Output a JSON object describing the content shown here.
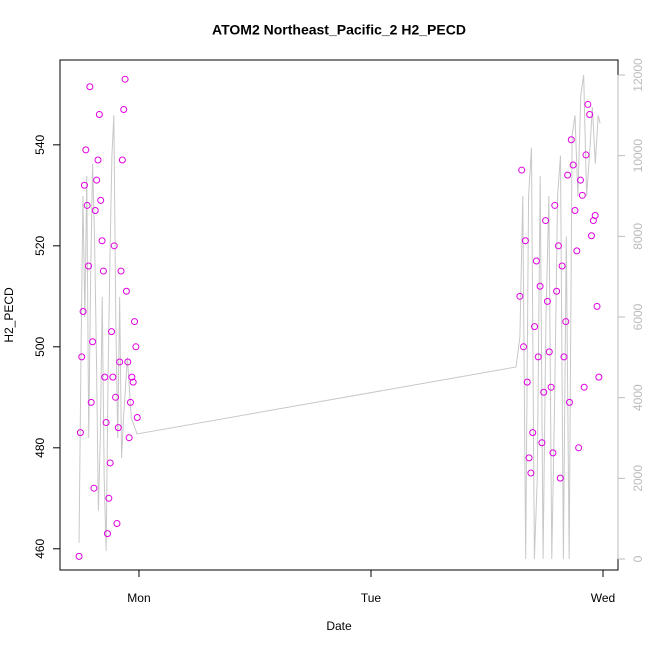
{
  "chart_data": {
    "type": "scatter",
    "title": "ATOM2 Northeast_Pacific_2 H2_PECD",
    "x_label": "Date",
    "y_label": "H2_PECD",
    "xlim": [
      -8.17,
      49.55
    ],
    "xticks": [
      {
        "value": 0,
        "label": "Mon"
      },
      {
        "value": 24,
        "label": "Tue"
      },
      {
        "value": 48,
        "label": "Wed"
      }
    ],
    "ylim": [
      455.8,
      556.8
    ],
    "yticks": [
      460,
      480,
      500,
      520,
      540
    ],
    "y2lim": [
      -273,
      12372
    ],
    "y2ticks": [
      0,
      2000,
      4000,
      6000,
      8000,
      10000,
      12000
    ],
    "series": [
      {
        "color": "#e000e0",
        "x": [
          -6.2,
          -6.06,
          -5.92,
          -5.78,
          -5.64,
          -5.5,
          -5.36,
          -5.22,
          -5.08,
          -4.94,
          -4.8,
          -4.66,
          -4.52,
          -4.38,
          -4.24,
          -4.1,
          -3.96,
          -3.82,
          -3.68,
          -3.54,
          -3.4,
          -3.26,
          -3.12,
          -2.98,
          -2.84,
          -2.7,
          -2.56,
          -2.42,
          -2.28,
          -2.14,
          -2.0,
          -1.86,
          -1.72,
          -1.58,
          -1.44,
          -1.3,
          -1.16,
          -1.02,
          -0.88,
          -0.74,
          -0.6,
          -0.46,
          -0.32,
          -0.18,
          39.4,
          39.59,
          39.78,
          39.97,
          40.16,
          40.35,
          40.54,
          40.73,
          40.92,
          41.11,
          41.3,
          41.49,
          41.68,
          41.87,
          42.06,
          42.25,
          42.44,
          42.63,
          42.82,
          43.01,
          43.2,
          43.39,
          43.58,
          43.77,
          43.96,
          44.15,
          44.34,
          44.53,
          44.72,
          44.91,
          45.1,
          45.29,
          45.48,
          45.67,
          45.86,
          46.05,
          46.24,
          46.43,
          46.62,
          46.81,
          47.0,
          47.19,
          47.38,
          47.57
        ],
        "values": [
          458.5,
          483,
          498,
          507,
          532,
          539,
          528,
          516,
          551.5,
          489,
          501,
          472,
          527,
          533,
          537,
          546,
          529,
          521,
          515,
          494,
          485,
          463,
          470,
          477,
          503,
          494,
          520,
          490,
          465,
          484,
          497,
          515,
          537,
          547,
          553,
          511,
          497,
          482,
          489,
          494,
          493,
          505,
          500,
          486,
          510,
          535,
          500,
          521,
          493,
          478,
          475,
          483,
          504,
          517,
          498,
          512,
          481,
          491,
          525,
          509,
          499,
          492,
          479,
          528,
          511,
          520,
          474,
          516,
          498,
          505,
          534,
          489,
          541,
          536,
          527,
          519,
          480,
          533,
          530,
          492,
          538,
          548,
          546,
          522,
          525,
          526,
          508,
          494
        ]
      },
      {
        "type": "line",
        "axis": "y2",
        "color": "#c8c8c8",
        "x": [
          -6.2,
          -6.0,
          -5.8,
          -5.6,
          -5.4,
          -5.2,
          -5.0,
          -4.8,
          -4.6,
          -4.4,
          -4.2,
          -4.0,
          -3.8,
          -3.6,
          -3.4,
          -3.2,
          -3.0,
          -2.8,
          -2.6,
          -2.4,
          -2.2,
          -2.0,
          -1.8,
          -1.6,
          -1.2,
          -0.8,
          -0.2,
          39.0,
          39.4,
          39.7,
          40.0,
          40.3,
          40.6,
          40.9,
          41.2,
          41.5,
          41.8,
          42.1,
          42.4,
          42.7,
          43.0,
          43.3,
          43.6,
          43.9,
          44.2,
          44.5,
          44.8,
          45.1,
          45.4,
          45.7,
          46.0,
          46.3,
          46.6,
          46.9,
          47.2,
          47.5,
          47.7
        ],
        "values": [
          400,
          5000,
          9000,
          6000,
          9500,
          3000,
          7000,
          9800,
          8000,
          5000,
          1200,
          3000,
          6500,
          2000,
          200,
          4500,
          7500,
          10000,
          11000,
          6000,
          3000,
          6500,
          2500,
          3500,
          5000,
          3500,
          3100,
          4760,
          5500,
          9000,
          0,
          9000,
          10200,
          0,
          2000,
          9500,
          0,
          6000,
          9000,
          0,
          4000,
          9000,
          10000,
          0,
          8000,
          0,
          10500,
          11000,
          9000,
          11500,
          12000,
          9000,
          10000,
          11200,
          9800,
          11000,
          10800
        ]
      }
    ]
  }
}
